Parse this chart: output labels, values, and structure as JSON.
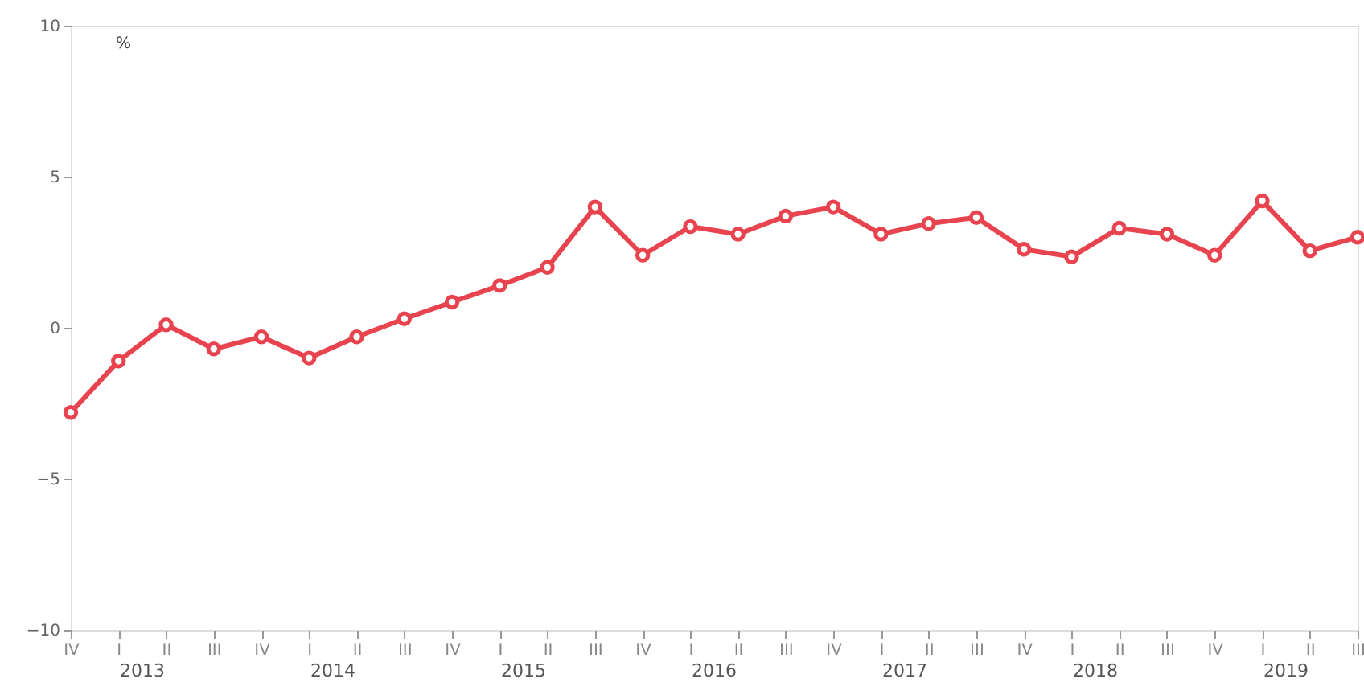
{
  "chart_data": {
    "type": "line",
    "ylabel": "%",
    "categories": [
      "IV",
      "I",
      "II",
      "III",
      "IV",
      "I",
      "II",
      "III",
      "IV",
      "I",
      "II",
      "III",
      "IV",
      "I",
      "II",
      "III",
      "IV",
      "I",
      "II",
      "III",
      "IV",
      "I",
      "II",
      "III",
      "IV",
      "I",
      "II",
      "III"
    ],
    "series": [
      {
        "color": "#e8444f",
        "values": [
          -2.8,
          -1.1,
          0.1,
          -0.7,
          -0.3,
          -1.0,
          -0.3,
          0.3,
          0.85,
          1.4,
          2.0,
          4.0,
          2.4,
          3.35,
          3.1,
          3.7,
          4.0,
          3.1,
          3.45,
          3.65,
          2.6,
          2.35,
          3.3,
          3.1,
          2.4,
          4.2,
          2.55,
          3.0
        ]
      }
    ],
    "annotations": [
      "2013",
      "2014",
      "2015",
      "2016",
      "2017",
      "2018",
      "2019"
    ],
    "ylim": [
      -10,
      10
    ],
    "yticks": [
      -10,
      -5,
      0,
      5,
      10
    ],
    "grid": false,
    "marker": "circle",
    "line_style": "solid"
  }
}
